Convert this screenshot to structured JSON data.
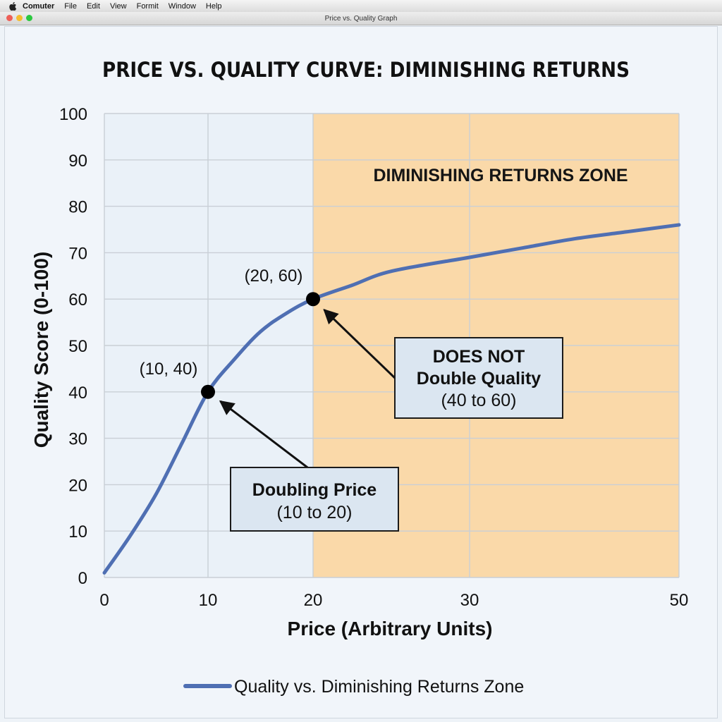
{
  "menubar": {
    "app_name": "Comuter",
    "items": [
      "File",
      "Edit",
      "View",
      "Formit",
      "Window",
      "Help"
    ]
  },
  "window": {
    "title": "Price vs. Quality Graph",
    "traffic_lights": [
      "#ee5f57",
      "#f5bd2f",
      "#2bc840"
    ]
  },
  "colors": {
    "curve": "#4f6fb3",
    "zone_fill": "#fad9a9",
    "plot_bg": "#eaf1f8",
    "grid": "#c9cfd6",
    "callout_bg": "#dbe6f1",
    "point": "#000000"
  },
  "chart_data": {
    "type": "line",
    "title": "PRICE VS. QUALITY CURVE: DIMINISHING RETURNS",
    "xlabel": "Price (Arbitrary Units)",
    "ylabel": "Quality Score (0-100)",
    "x_ticks": [
      0,
      10,
      20,
      30,
      50
    ],
    "y_ticks": [
      0,
      10,
      20,
      30,
      40,
      50,
      60,
      70,
      80,
      90,
      100
    ],
    "ylim": [
      0,
      100
    ],
    "grid": true,
    "series": [
      {
        "name": "Quality vs. Diminishing Returns Zone",
        "points": [
          [
            0,
            1
          ],
          [
            2.5,
            9
          ],
          [
            5,
            18
          ],
          [
            7.5,
            29
          ],
          [
            10,
            40
          ],
          [
            12.5,
            47
          ],
          [
            15,
            53
          ],
          [
            17.5,
            57
          ],
          [
            20,
            60
          ],
          [
            22.5,
            63
          ],
          [
            25,
            66
          ],
          [
            30,
            69
          ],
          [
            35,
            71
          ],
          [
            40,
            73
          ],
          [
            45,
            74.5
          ],
          [
            50,
            76
          ]
        ]
      }
    ],
    "shaded_region": {
      "x_from": 20,
      "x_to": 50,
      "label": "DIMINISHING RETURNS ZONE"
    },
    "highlight_points": [
      {
        "x": 10,
        "y": 40,
        "label": "(10, 40)"
      },
      {
        "x": 20,
        "y": 60,
        "label": "(20, 60)"
      }
    ],
    "annotations": [
      {
        "lines": [
          "Doubling Price",
          "(10 to 20)"
        ],
        "bold_lines": 1,
        "arrow_to": [
          10,
          40
        ]
      },
      {
        "lines": [
          "DOES NOT",
          "Double Quality",
          "(40 to 60)"
        ],
        "bold_lines": 2,
        "arrow_to": [
          20,
          60
        ]
      }
    ],
    "legend": {
      "position": "bottom-center",
      "label": "Quality vs. Diminishing Returns Zone"
    }
  }
}
